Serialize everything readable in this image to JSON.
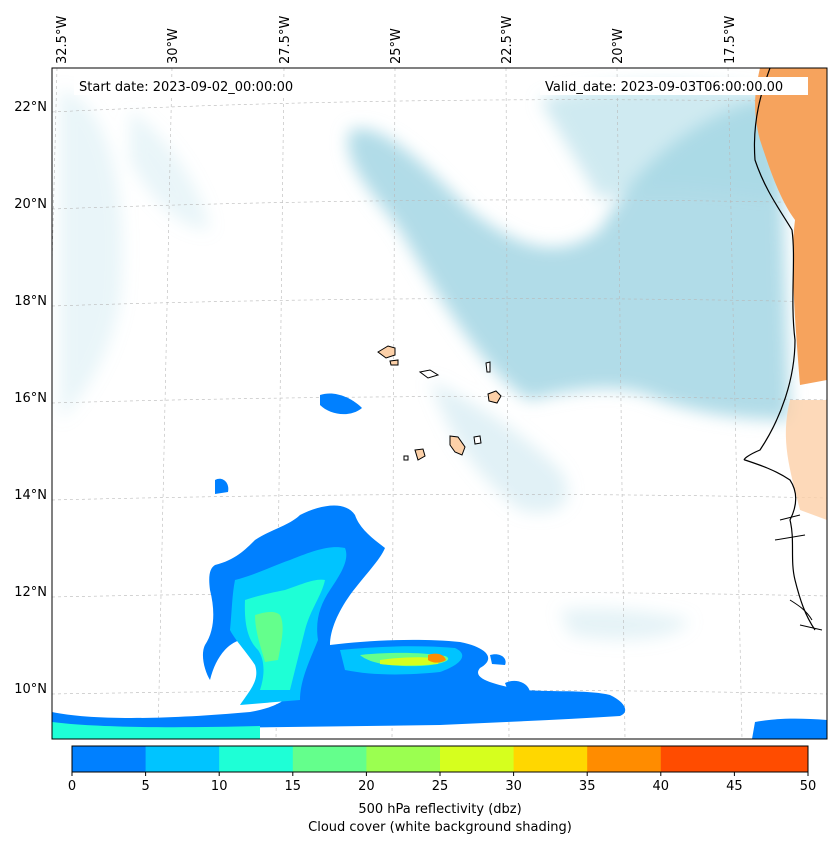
{
  "map": {
    "start_date": "Start date: 2023-09-02_00:00:00",
    "valid_date": "Valid_date: 2023-09-03T06:00:00.00",
    "lon_labels": [
      "32.5°W",
      "30°W",
      "27.5°W",
      "25°W",
      "22.5°W",
      "20°W",
      "17.5°W"
    ],
    "lat_labels": [
      "22°N",
      "20°N",
      "18°N",
      "16°N",
      "14°N",
      "12°N",
      "10°N"
    ]
  },
  "colorbar": {
    "ticks": [
      "0",
      "5",
      "10",
      "15",
      "20",
      "25",
      "30",
      "35",
      "40",
      "45",
      "50"
    ],
    "colors": [
      "#0080ff",
      "#00c4ff",
      "#1effd6",
      "#64ff8c",
      "#9bff50",
      "#d6ff1e",
      "#ffd700",
      "#ff8c00",
      "#ff4c00",
      "#ff4c00"
    ],
    "label_line1": "500 hPa reflectivity (dbz)",
    "label_line2": "Cloud cover (white background shading)"
  },
  "colors": {
    "cloud": "#a8d8e6",
    "land": "#f6a35d",
    "land_light": "#fcd0a8",
    "reflect_low": "#0080ff",
    "reflect_mid": "#64ff8c"
  }
}
